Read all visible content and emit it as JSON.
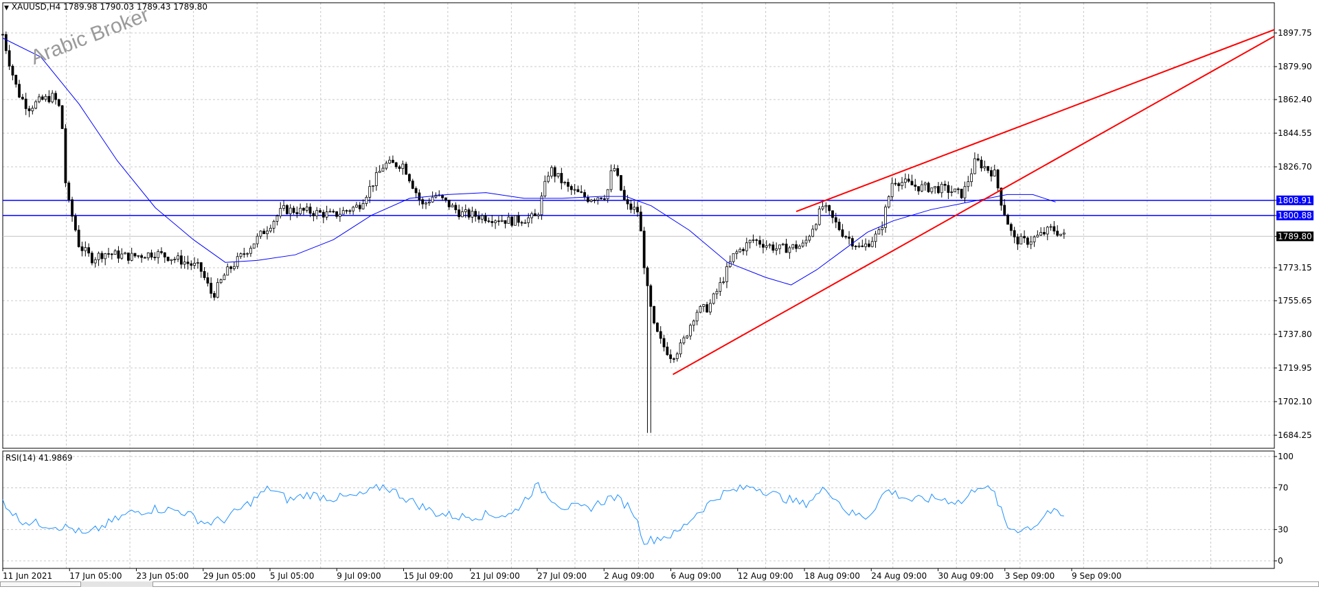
{
  "header": {
    "symbol_line": "XAUUSD,H4  1789.98 1790.03 1789.43 1789.80"
  },
  "watermark": "Arabic Broker",
  "colors": {
    "candle": "#000000",
    "ma": "#0000ff",
    "rsi": "#1e90ff",
    "trendline": "#ff0000",
    "level_line": "#0000ff",
    "current_price_line": "#c0c0c0",
    "grid": "#c8c8c8",
    "level_label_bg": "#0000ff",
    "current_label_bg": "#000000"
  },
  "chart_data": [
    {
      "type": "candlestick",
      "title": "XAUUSD,H4",
      "ylim": [
        1684.25,
        1897.75
      ],
      "yticks": [
        1897.75,
        1879.9,
        1862.4,
        1844.55,
        1826.7,
        1808.91,
        1800.88,
        1789.8,
        1773.15,
        1755.65,
        1737.8,
        1719.95,
        1702.1,
        1684.25
      ],
      "x_tick_labels": [
        "11 Jun 2021",
        "17 Jun 05:00",
        "23 Jun 05:00",
        "29 Jun 05:00",
        "5 Jul 05:00",
        "9 Jul 09:00",
        "15 Jul 09:00",
        "21 Jul 09:00",
        "27 Jul 09:00",
        "2 Aug 09:00",
        "6 Aug 09:00",
        "12 Aug 09:00",
        "18 Aug 09:00",
        "24 Aug 09:00",
        "30 Aug 09:00",
        "3 Sep 09:00",
        "9 Sep 09:00"
      ],
      "grid": true,
      "horizontal_levels": [
        {
          "price": 1808.91,
          "label": "1808.91"
        },
        {
          "price": 1800.88,
          "label": "1800.88"
        }
      ],
      "current_price": {
        "price": 1789.8,
        "label": "1789.80"
      },
      "trendlines": [
        {
          "from": [
            0.527,
            1716.5
          ],
          "to": [
            1.0,
            1896.0
          ]
        },
        {
          "from": [
            0.624,
            1803.0
          ],
          "to": [
            1.0,
            1899.5
          ]
        }
      ],
      "price_path": [
        [
          0.0,
          1897.0
        ],
        [
          0.006,
          1880.0
        ],
        [
          0.012,
          1866.0
        ],
        [
          0.02,
          1858.0
        ],
        [
          0.03,
          1862.0
        ],
        [
          0.04,
          1864.0
        ],
        [
          0.046,
          1856.0
        ],
        [
          0.05,
          1812.0
        ],
        [
          0.056,
          1797.0
        ],
        [
          0.06,
          1785.0
        ],
        [
          0.07,
          1778.0
        ],
        [
          0.08,
          1781.0
        ],
        [
          0.1,
          1779.0
        ],
        [
          0.12,
          1781.0
        ],
        [
          0.14,
          1777.0
        ],
        [
          0.155,
          1773.0
        ],
        [
          0.165,
          1758.0
        ],
        [
          0.175,
          1770.0
        ],
        [
          0.19,
          1781.0
        ],
        [
          0.21,
          1796.0
        ],
        [
          0.22,
          1804.0
        ],
        [
          0.24,
          1803.0
        ],
        [
          0.26,
          1801.0
        ],
        [
          0.28,
          1806.0
        ],
        [
          0.3,
          1828.0
        ],
        [
          0.315,
          1828.0
        ],
        [
          0.33,
          1806.0
        ],
        [
          0.34,
          1812.0
        ],
        [
          0.36,
          1802.0
        ],
        [
          0.38,
          1800.0
        ],
        [
          0.4,
          1798.0
        ],
        [
          0.42,
          1800.0
        ],
        [
          0.43,
          1826.0
        ],
        [
          0.445,
          1815.0
        ],
        [
          0.46,
          1810.0
        ],
        [
          0.475,
          1812.0
        ],
        [
          0.48,
          1828.0
        ],
        [
          0.49,
          1806.0
        ],
        [
          0.5,
          1803.0
        ],
        [
          0.506,
          1765.0
        ],
        [
          0.512,
          1742.0
        ],
        [
          0.518,
          1733.0
        ],
        [
          0.526,
          1726.0
        ],
        [
          0.534,
          1732.0
        ],
        [
          0.545,
          1750.0
        ],
        [
          0.555,
          1752.0
        ],
        [
          0.565,
          1765.0
        ],
        [
          0.575,
          1780.0
        ],
        [
          0.59,
          1788.0
        ],
        [
          0.61,
          1783.0
        ],
        [
          0.63,
          1785.0
        ],
        [
          0.645,
          1806.0
        ],
        [
          0.66,
          1792.0
        ],
        [
          0.675,
          1783.0
        ],
        [
          0.69,
          1792.0
        ],
        [
          0.7,
          1820.0
        ],
        [
          0.72,
          1816.0
        ],
        [
          0.74,
          1815.0
        ],
        [
          0.755,
          1812.0
        ],
        [
          0.765,
          1830.0
        ],
        [
          0.78,
          1823.0
        ],
        [
          0.786,
          1806.0
        ],
        [
          0.795,
          1788.0
        ],
        [
          0.805,
          1787.0
        ],
        [
          0.815,
          1790.0
        ],
        [
          0.825,
          1794.0
        ],
        [
          0.835,
          1789.8
        ]
      ],
      "moving_average_path": [
        [
          0.0,
          1895.0
        ],
        [
          0.03,
          1885.0
        ],
        [
          0.06,
          1860.0
        ],
        [
          0.09,
          1830.0
        ],
        [
          0.12,
          1805.0
        ],
        [
          0.15,
          1788.0
        ],
        [
          0.175,
          1776.0
        ],
        [
          0.2,
          1777.0
        ],
        [
          0.23,
          1780.0
        ],
        [
          0.26,
          1788.0
        ],
        [
          0.29,
          1801.0
        ],
        [
          0.32,
          1810.0
        ],
        [
          0.35,
          1812.0
        ],
        [
          0.38,
          1813.0
        ],
        [
          0.41,
          1810.0
        ],
        [
          0.44,
          1810.0
        ],
        [
          0.47,
          1811.0
        ],
        [
          0.49,
          1811.0
        ],
        [
          0.51,
          1806.0
        ],
        [
          0.54,
          1793.0
        ],
        [
          0.57,
          1776.0
        ],
        [
          0.6,
          1768.0
        ],
        [
          0.62,
          1764.0
        ],
        [
          0.64,
          1772.0
        ],
        [
          0.66,
          1782.0
        ],
        [
          0.68,
          1792.0
        ],
        [
          0.7,
          1798.0
        ],
        [
          0.73,
          1804.0
        ],
        [
          0.76,
          1808.0
        ],
        [
          0.79,
          1812.0
        ],
        [
          0.81,
          1812.0
        ],
        [
          0.828,
          1808.0
        ]
      ]
    },
    {
      "type": "line",
      "title": "RSI(14) 41.9869",
      "ylim": [
        0,
        100
      ],
      "yticks": [
        100,
        70,
        30,
        0
      ],
      "rsi_path": [
        [
          0.0,
          58
        ],
        [
          0.012,
          40
        ],
        [
          0.025,
          36
        ],
        [
          0.04,
          34
        ],
        [
          0.055,
          31
        ],
        [
          0.065,
          24
        ],
        [
          0.08,
          34
        ],
        [
          0.1,
          46
        ],
        [
          0.12,
          50
        ],
        [
          0.14,
          48
        ],
        [
          0.16,
          36
        ],
        [
          0.175,
          40
        ],
        [
          0.19,
          52
        ],
        [
          0.21,
          70
        ],
        [
          0.225,
          58
        ],
        [
          0.24,
          64
        ],
        [
          0.26,
          60
        ],
        [
          0.28,
          62
        ],
        [
          0.3,
          72
        ],
        [
          0.32,
          58
        ],
        [
          0.34,
          46
        ],
        [
          0.36,
          42
        ],
        [
          0.38,
          44
        ],
        [
          0.4,
          44
        ],
        [
          0.42,
          72
        ],
        [
          0.44,
          52
        ],
        [
          0.46,
          50
        ],
        [
          0.48,
          62
        ],
        [
          0.495,
          50
        ],
        [
          0.505,
          18
        ],
        [
          0.515,
          22
        ],
        [
          0.53,
          26
        ],
        [
          0.545,
          45
        ],
        [
          0.565,
          64
        ],
        [
          0.59,
          72
        ],
        [
          0.61,
          62
        ],
        [
          0.63,
          54
        ],
        [
          0.648,
          70
        ],
        [
          0.665,
          46
        ],
        [
          0.68,
          42
        ],
        [
          0.695,
          68
        ],
        [
          0.715,
          58
        ],
        [
          0.735,
          60
        ],
        [
          0.755,
          56
        ],
        [
          0.768,
          74
        ],
        [
          0.78,
          64
        ],
        [
          0.79,
          32
        ],
        [
          0.8,
          30
        ],
        [
          0.812,
          34
        ],
        [
          0.822,
          48
        ],
        [
          0.835,
          42
        ]
      ]
    }
  ],
  "price_axis_labels": [
    "1897.75",
    "1879.90",
    "1862.40",
    "1844.55",
    "1826.70",
    "1808.91",
    "1800.88",
    "1789.80",
    "1773.15",
    "1755.65",
    "1737.80",
    "1719.95",
    "1702.10",
    "1684.25"
  ],
  "rsi_axis_labels": [
    "100",
    "70",
    "30",
    "0"
  ]
}
